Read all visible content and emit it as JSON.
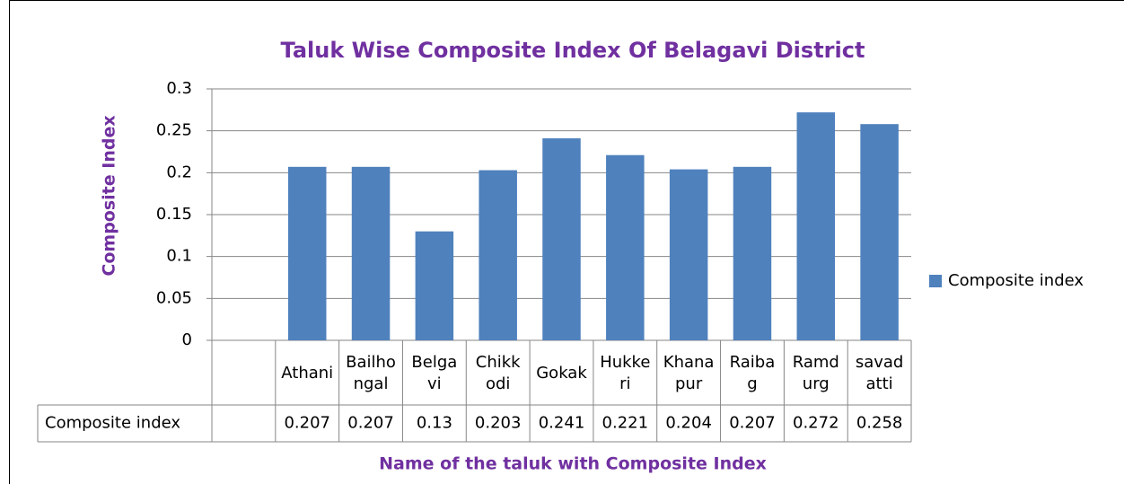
{
  "chart_data": {
    "type": "bar",
    "title": "Taluk Wise Composite Index Of Belagavi District",
    "x_label": "Name of the taluk with Composite Index",
    "y_label": "Composite Index",
    "categories": [
      null,
      "Athani",
      "Bailhongal",
      "Belgavi",
      "Chikkodi",
      "Gokak",
      "Hukkeri",
      "Khanapur",
      "Raibag",
      "Ramdurg",
      "savadatti"
    ],
    "series": [
      {
        "name": "Composite index",
        "color": "#4f81bd",
        "values": [
          null,
          0.207,
          0.207,
          0.13,
          0.203,
          0.241,
          0.221,
          0.204,
          0.207,
          0.272,
          0.258
        ]
      }
    ],
    "ylim": [
      0,
      0.3
    ],
    "yticks": [
      0,
      0.05,
      0.1,
      0.15,
      0.2,
      0.25,
      0.3
    ],
    "grid": true,
    "legend": "right",
    "data_table": true
  }
}
